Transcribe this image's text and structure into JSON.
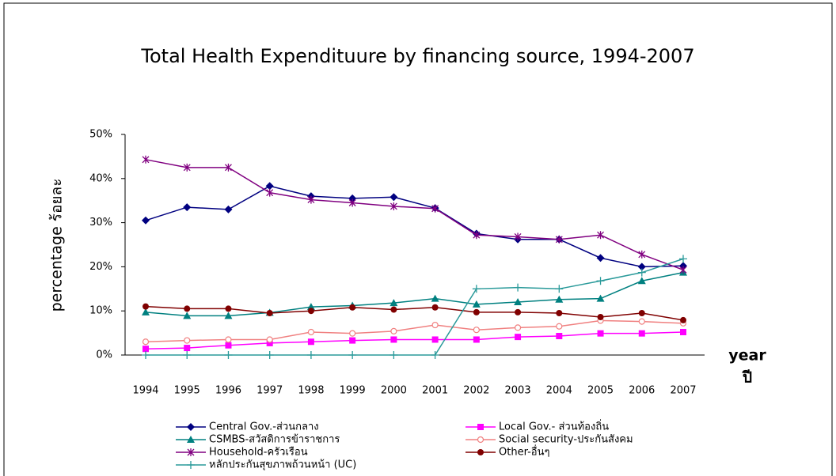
{
  "chart_data": {
    "type": "line",
    "title": "Total Health Expendituure by financing source, 1994-2007",
    "y_label": "percentage ร้อยละ",
    "x_label": "year",
    "x_label_thai": "ปี",
    "categories": [
      "1994",
      "1995",
      "1996",
      "1997",
      "1998",
      "1999",
      "2000",
      "2001",
      "2002",
      "2003",
      "2004",
      "2005",
      "2006",
      "2007"
    ],
    "ylim": [
      0,
      50
    ],
    "yticks": [
      {
        "value": 0,
        "label": "0%"
      },
      {
        "value": 10,
        "label": "10%"
      },
      {
        "value": 20,
        "label": "20%"
      },
      {
        "value": 30,
        "label": "30%"
      },
      {
        "value": 40,
        "label": "40%"
      },
      {
        "value": 50,
        "label": "50%"
      }
    ],
    "series": [
      {
        "name": "Central Gov.-ส่วนกลาง",
        "color": "#000080",
        "marker": "diamond",
        "values": [
          30.5,
          33.5,
          33,
          38.3,
          36,
          35.5,
          35.8,
          33.3,
          27.5,
          26.2,
          26.2,
          22,
          20,
          20.2
        ]
      },
      {
        "name": "Local Gov.- ส่วนท้องถิ่น",
        "color": "#ff00ff",
        "marker": "square",
        "values": [
          1.4,
          1.6,
          2.2,
          2.7,
          3,
          3.3,
          3.5,
          3.5,
          3.5,
          4.1,
          4.3,
          4.9,
          4.9,
          5.2
        ]
      },
      {
        "name": "CSMBS-สวัสดิการข้าราชการ",
        "color": "#008080",
        "marker": "triangle",
        "values": [
          9.7,
          8.9,
          8.9,
          9.6,
          10.9,
          11.2,
          11.8,
          12.8,
          11.5,
          12,
          12.6,
          12.8,
          16.8,
          18.7
        ]
      },
      {
        "name": "Social security-ประกันสังคม",
        "color": "#f08080",
        "marker": "open-circle",
        "values": [
          3,
          3.3,
          3.5,
          3.5,
          5.2,
          4.9,
          5.4,
          6.8,
          5.7,
          6.2,
          6.5,
          7.8,
          7.6,
          7.2
        ]
      },
      {
        "name": "Household-ครัวเรือน",
        "color": "#800080",
        "marker": "star",
        "values": [
          44.3,
          42.5,
          42.5,
          36.8,
          35.2,
          34.5,
          33.7,
          33.2,
          27.2,
          26.8,
          26.2,
          27.2,
          22.8,
          19.3
        ]
      },
      {
        "name": "Other-อื่นๆ",
        "color": "#800000",
        "marker": "circle",
        "values": [
          11,
          10.5,
          10.5,
          9.5,
          10,
          10.8,
          10.3,
          10.8,
          9.7,
          9.7,
          9.5,
          8.6,
          9.5,
          7.9
        ]
      },
      {
        "name": "หลักประกันสุขภาพถ้วนหน้า (UC)",
        "color": "#2a9a9a",
        "marker": "plus",
        "values": [
          0,
          0,
          0,
          0,
          0,
          0,
          0,
          0,
          15,
          15.3,
          15,
          16.8,
          18.7,
          21.8
        ]
      }
    ]
  }
}
